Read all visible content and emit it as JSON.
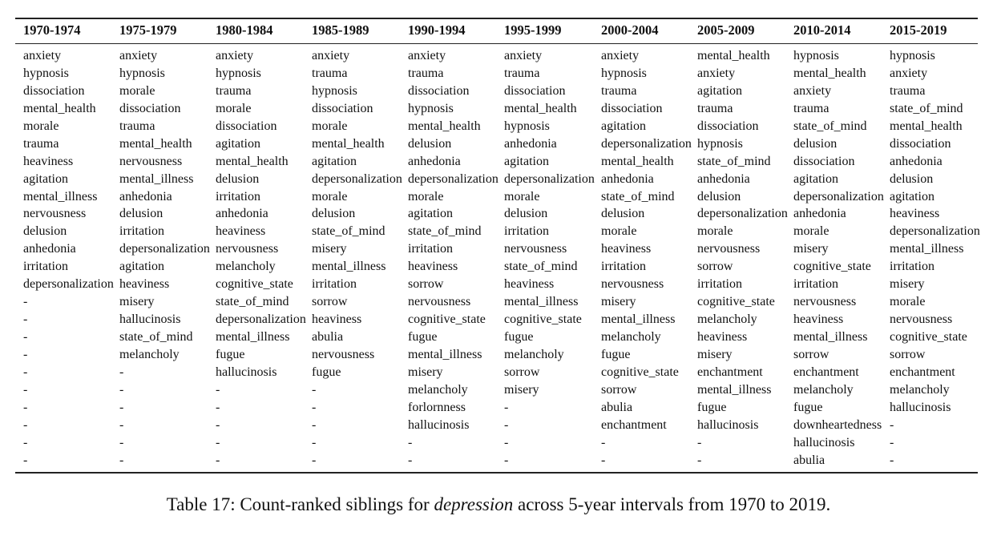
{
  "table": {
    "columns": [
      {
        "header": "1970-1974",
        "cells": [
          "anxiety",
          "hypnosis",
          "dissociation",
          "mental_health",
          "morale",
          "trauma",
          "heaviness",
          "agitation",
          "mental_illness",
          "nervousness",
          "delusion",
          "anhedonia",
          "irritation",
          "depersonalization",
          "-",
          "-",
          "-",
          "-",
          "-",
          "-",
          "-",
          "-",
          "-",
          "-"
        ]
      },
      {
        "header": "1975-1979",
        "cells": [
          "anxiety",
          "hypnosis",
          "morale",
          "dissociation",
          "trauma",
          "mental_health",
          "nervousness",
          "mental_illness",
          "anhedonia",
          "delusion",
          "irritation",
          "depersonalization",
          "agitation",
          "heaviness",
          "misery",
          "hallucinosis",
          "state_of_mind",
          "melancholy",
          "-",
          "-",
          "-",
          "-",
          "-",
          "-"
        ]
      },
      {
        "header": "1980-1984",
        "cells": [
          "anxiety",
          "hypnosis",
          "trauma",
          "morale",
          "dissociation",
          "agitation",
          "mental_health",
          "delusion",
          "irritation",
          "anhedonia",
          "heaviness",
          "nervousness",
          "melancholy",
          "cognitive_state",
          "state_of_mind",
          "depersonalization",
          "mental_illness",
          "fugue",
          "hallucinosis",
          "-",
          "-",
          "-",
          "-",
          "-"
        ]
      },
      {
        "header": "1985-1989",
        "cells": [
          "anxiety",
          "trauma",
          "hypnosis",
          "dissociation",
          "morale",
          "mental_health",
          "agitation",
          "depersonalization",
          "morale",
          "delusion",
          "state_of_mind",
          "misery",
          "mental_illness",
          "irritation",
          "sorrow",
          "heaviness",
          "abulia",
          "nervousness",
          "fugue",
          "-",
          "-",
          "-",
          "-",
          "-"
        ]
      },
      {
        "header": "1990-1994",
        "cells": [
          "anxiety",
          "trauma",
          "dissociation",
          "hypnosis",
          "mental_health",
          "delusion",
          "anhedonia",
          "depersonalization",
          "morale",
          "agitation",
          "state_of_mind",
          "irritation",
          "heaviness",
          "sorrow",
          "nervousness",
          "cognitive_state",
          "fugue",
          "mental_illness",
          "misery",
          "melancholy",
          "forlornness",
          "hallucinosis",
          "-",
          "-"
        ]
      },
      {
        "header": "1995-1999",
        "cells": [
          "anxiety",
          "trauma",
          "dissociation",
          "mental_health",
          "hypnosis",
          "anhedonia",
          "agitation",
          "depersonalization",
          "morale",
          "delusion",
          "irritation",
          "nervousness",
          "state_of_mind",
          "heaviness",
          "mental_illness",
          "cognitive_state",
          "fugue",
          "melancholy",
          "sorrow",
          "misery",
          "-",
          "-",
          "-",
          "-"
        ]
      },
      {
        "header": "2000-2004",
        "cells": [
          "anxiety",
          "hypnosis",
          "trauma",
          "dissociation",
          "agitation",
          "depersonalization",
          "mental_health",
          "anhedonia",
          "state_of_mind",
          "delusion",
          "morale",
          "heaviness",
          "irritation",
          "nervousness",
          "misery",
          "mental_illness",
          "melancholy",
          "fugue",
          "cognitive_state",
          "sorrow",
          "abulia",
          "enchantment",
          "-",
          "-"
        ]
      },
      {
        "header": "2005-2009",
        "cells": [
          "mental_health",
          "anxiety",
          "agitation",
          "trauma",
          "dissociation",
          "hypnosis",
          "state_of_mind",
          "anhedonia",
          "delusion",
          "depersonalization",
          "morale",
          "nervousness",
          "sorrow",
          "irritation",
          "cognitive_state",
          "melancholy",
          "heaviness",
          "misery",
          "enchantment",
          "mental_illness",
          "fugue",
          "hallucinosis",
          "-",
          "-"
        ]
      },
      {
        "header": "2010-2014",
        "cells": [
          "hypnosis",
          "mental_health",
          "anxiety",
          "trauma",
          "state_of_mind",
          "delusion",
          "dissociation",
          "agitation",
          "depersonalization",
          "anhedonia",
          "morale",
          "misery",
          "cognitive_state",
          "irritation",
          "nervousness",
          "heaviness",
          "mental_illness",
          "sorrow",
          "enchantment",
          "melancholy",
          "fugue",
          "downheartedness",
          "hallucinosis",
          "abulia"
        ]
      },
      {
        "header": "2015-2019",
        "cells": [
          "hypnosis",
          "anxiety",
          "trauma",
          "state_of_mind",
          "mental_health",
          "dissociation",
          "anhedonia",
          "delusion",
          "agitation",
          "heaviness",
          "depersonalization",
          "mental_illness",
          "irritation",
          "misery",
          "morale",
          "nervousness",
          "cognitive_state",
          "sorrow",
          "enchantment",
          "melancholy",
          "hallucinosis",
          "-",
          "-",
          "-"
        ]
      }
    ]
  },
  "caption": {
    "prefix": "Table 17: Count-ranked siblings for ",
    "term": "depression",
    "suffix": " across 5-year intervals from 1970 to 2019."
  }
}
